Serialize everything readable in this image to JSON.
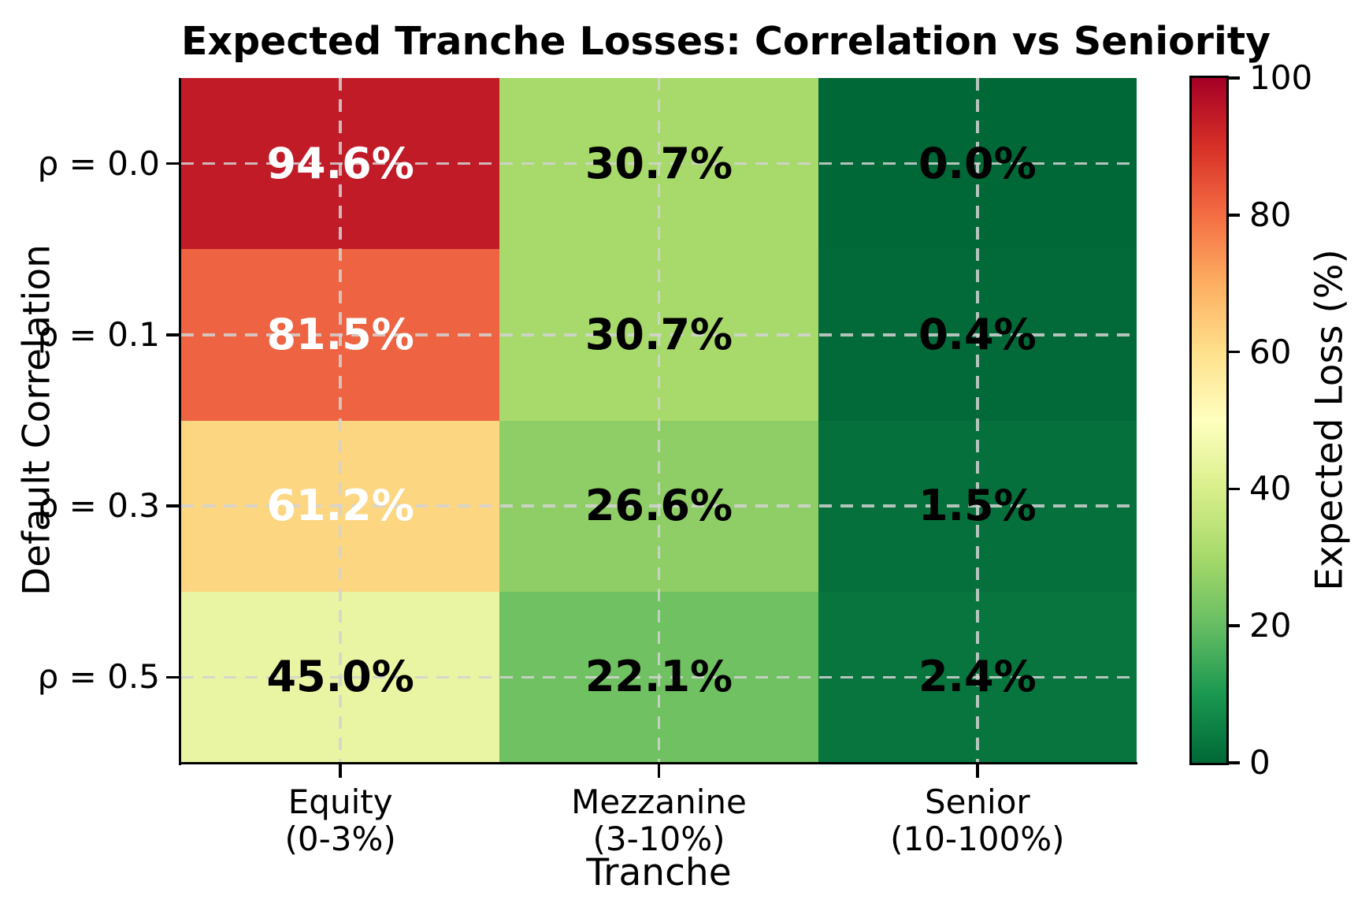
{
  "chart_data": {
    "type": "heatmap",
    "title": "Expected Tranche Losses: Correlation vs Seniority",
    "xlabel": "Tranche",
    "ylabel": "Default Correlation",
    "colormap": "RdYlGn_r",
    "grid": true,
    "grid_style": "dashed",
    "x_categories": [
      [
        "Equity",
        "(0-3%)"
      ],
      [
        "Mezzanine",
        "(3-10%)"
      ],
      [
        "Senior",
        "(10-100%)"
      ]
    ],
    "y_categories": [
      "ρ = 0.0",
      "ρ = 0.1",
      "ρ = 0.3",
      "ρ = 0.5"
    ],
    "values": [
      [
        94.6,
        30.7,
        0.0
      ],
      [
        81.5,
        30.7,
        0.4
      ],
      [
        61.2,
        26.6,
        1.5
      ],
      [
        45.0,
        22.1,
        2.4
      ]
    ],
    "cell_labels": [
      [
        "94.6%",
        "30.7%",
        "0.0%"
      ],
      [
        "81.5%",
        "30.7%",
        "0.4%"
      ],
      [
        "61.2%",
        "26.6%",
        "1.5%"
      ],
      [
        "45.0%",
        "22.1%",
        "2.4%"
      ]
    ],
    "cell_colors": [
      [
        "#c01b27",
        "#a8da6b",
        "#006837"
      ],
      [
        "#ee6341",
        "#a8da6b",
        "#026a39"
      ],
      [
        "#fcd681",
        "#8fce67",
        "#05703c"
      ],
      [
        "#eaf5a3",
        "#70c161",
        "#08743e"
      ]
    ],
    "cell_text_colors": [
      [
        "#ffffff",
        "#000000",
        "#000000"
      ],
      [
        "#ffffff",
        "#000000",
        "#000000"
      ],
      [
        "#ffffff",
        "#000000",
        "#000000"
      ],
      [
        "#000000",
        "#000000",
        "#000000"
      ]
    ],
    "colorbar": {
      "label": "Expected Loss (%)",
      "range": [
        0,
        100
      ],
      "ticks": [
        "0",
        "20",
        "40",
        "60",
        "80",
        "100"
      ],
      "gradient_top_to_bottom": [
        {
          "pos": 0,
          "color": "#a50026"
        },
        {
          "pos": 10,
          "color": "#d73027"
        },
        {
          "pos": 20,
          "color": "#f46d43"
        },
        {
          "pos": 30,
          "color": "#fdae61"
        },
        {
          "pos": 40,
          "color": "#fee08b"
        },
        {
          "pos": 50,
          "color": "#ffffbf"
        },
        {
          "pos": 60,
          "color": "#d9ef8b"
        },
        {
          "pos": 70,
          "color": "#a6d96a"
        },
        {
          "pos": 80,
          "color": "#66bd63"
        },
        {
          "pos": 90,
          "color": "#1a9850"
        },
        {
          "pos": 100,
          "color": "#006837"
        }
      ]
    }
  }
}
